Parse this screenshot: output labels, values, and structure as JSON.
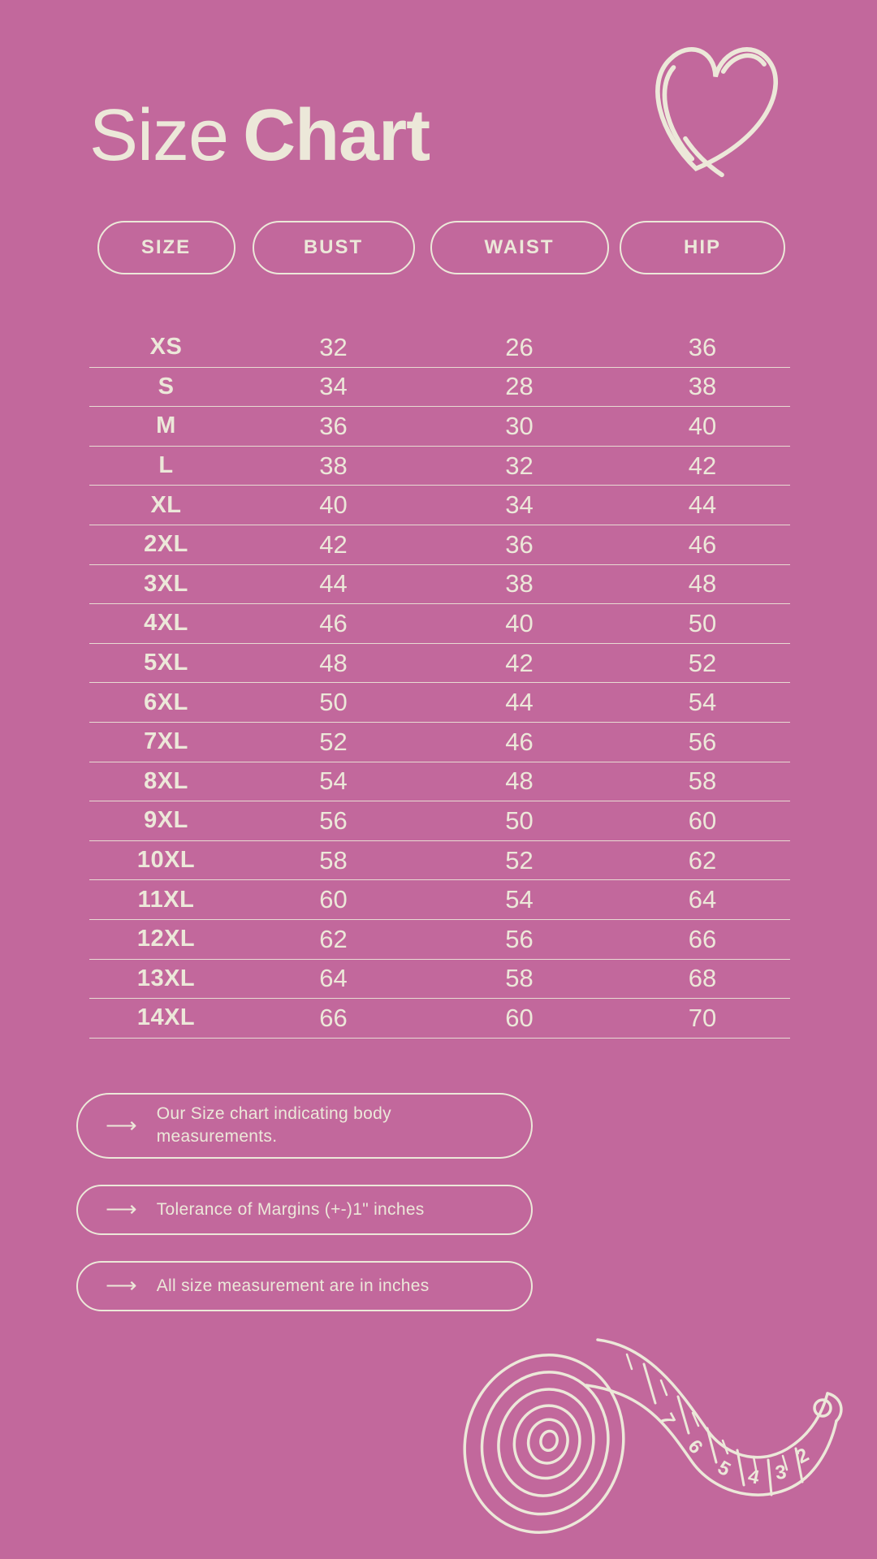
{
  "header": {
    "title_light": "Size",
    "title_bold": "Chart"
  },
  "icons": {
    "heart": "hand-drawn-heart-sketch",
    "arrow_glyph": "⟶",
    "tape": "hand-drawn-measuring-tape-sketch"
  },
  "colors": {
    "background": "#c2689c",
    "foreground": "#ece8d9"
  },
  "notes": [
    "Our Size chart indicating body measurements.",
    "Tolerance of Margins (+-)1\" inches",
    "All size measurement are in inches"
  ],
  "chart_data": {
    "type": "table",
    "title": "Size Chart",
    "columns": [
      "SIZE",
      "BUST",
      "WAIST",
      "HIP"
    ],
    "rows": [
      [
        "XS",
        32,
        26,
        36
      ],
      [
        "S",
        34,
        28,
        38
      ],
      [
        "M",
        36,
        30,
        40
      ],
      [
        "L",
        38,
        32,
        42
      ],
      [
        "XL",
        40,
        34,
        44
      ],
      [
        "2XL",
        42,
        36,
        46
      ],
      [
        "3XL",
        44,
        38,
        48
      ],
      [
        "4XL",
        46,
        40,
        50
      ],
      [
        "5XL",
        48,
        42,
        52
      ],
      [
        "6XL",
        50,
        44,
        54
      ],
      [
        "7XL",
        52,
        46,
        56
      ],
      [
        "8XL",
        54,
        48,
        58
      ],
      [
        "9XL",
        56,
        50,
        60
      ],
      [
        "10XL",
        58,
        52,
        62
      ],
      [
        "11XL",
        60,
        54,
        64
      ],
      [
        "12XL",
        62,
        56,
        66
      ],
      [
        "13XL",
        64,
        58,
        68
      ],
      [
        "14XL",
        66,
        60,
        70
      ]
    ],
    "units": "inches",
    "notes": [
      "Our Size chart indicating body measurements.",
      "Tolerance of Margins (+-)1\" inches",
      "All size measurement are in inches"
    ]
  }
}
